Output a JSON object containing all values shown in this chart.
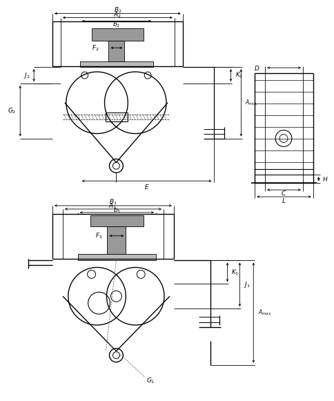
{
  "bg_color": "#ffffff",
  "lc": "#000000",
  "gray1": "#999999",
  "gray2": "#bbbbbb",
  "fs": 6.5,
  "fs_sub": 5.5,
  "fig_w": 4.84,
  "fig_h": 5.81,
  "dpi": 100
}
